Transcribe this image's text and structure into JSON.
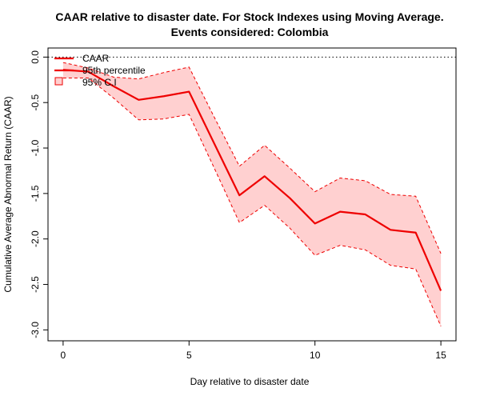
{
  "chart_data": {
    "type": "line",
    "title_line1": "CAAR relative to disaster date. For Stock Indexes using Moving Average.",
    "title_line2": "Events considered: Colombia",
    "xlabel": "Day relative to disaster date",
    "ylabel": "Cumulative Average Abnormal Return (CAAR)",
    "xlim": [
      0,
      15
    ],
    "ylim": [
      -3.0,
      0.0
    ],
    "x_ticks": [
      0,
      5,
      10,
      15
    ],
    "y_ticks": [
      0.0,
      -0.5,
      -1.0,
      -1.5,
      -2.0,
      -2.5,
      -3.0
    ],
    "x_tick_labels": [
      "0",
      "5",
      "10",
      "15"
    ],
    "y_tick_labels": [
      "0.0",
      "-0.5",
      "-1.0",
      "-1.5",
      "-2.0",
      "-2.5",
      "-3.0"
    ],
    "reference_line_y": 0,
    "x": [
      0,
      1,
      2,
      3,
      4,
      5,
      6,
      7,
      8,
      9,
      10,
      11,
      12,
      13,
      14,
      15
    ],
    "series": [
      {
        "name": "CAAR",
        "color": "#ee0000",
        "values": [
          -0.14,
          -0.16,
          -0.32,
          -0.47,
          -0.43,
          -0.38,
          -0.95,
          -1.52,
          -1.31,
          -1.55,
          -1.83,
          -1.7,
          -1.73,
          -1.9,
          -1.93,
          -2.57
        ]
      },
      {
        "name": "95th percentile upper",
        "color": "#ee0000",
        "values": [
          -0.06,
          -0.12,
          -0.22,
          -0.24,
          -0.17,
          -0.11,
          -0.66,
          -1.2,
          -0.97,
          -1.22,
          -1.48,
          -1.33,
          -1.36,
          -1.51,
          -1.53,
          -2.16
        ]
      },
      {
        "name": "95th percentile lower",
        "color": "#ee0000",
        "values": [
          -0.23,
          -0.23,
          -0.45,
          -0.69,
          -0.68,
          -0.63,
          -1.22,
          -1.82,
          -1.63,
          -1.88,
          -2.18,
          -2.07,
          -2.12,
          -2.29,
          -2.33,
          -2.96
        ]
      }
    ],
    "legend": {
      "placement": "top-left",
      "items": [
        {
          "label": "CAAR",
          "kind": "line",
          "color": "#ee0000"
        },
        {
          "label": "95th percentile",
          "kind": "dashed",
          "color": "#ee0000"
        },
        {
          "label": "95% C.I",
          "kind": "box",
          "color": "#ffd0d0"
        }
      ]
    },
    "ci_fill_color": "#ffd0d0",
    "grid": false
  }
}
